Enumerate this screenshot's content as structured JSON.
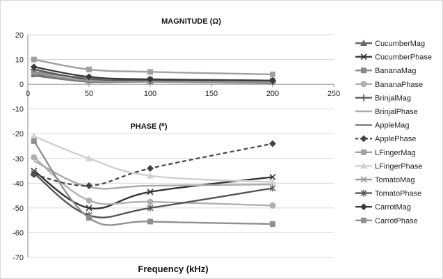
{
  "chart_data": {
    "type": "line",
    "title_top": "MAGNITUDE (Ω)",
    "title_bottom": "PHASE (⁰)",
    "xlabel": "Frequency (kHz)",
    "ylim": [
      -70,
      20
    ],
    "yticks": [
      20,
      10,
      0,
      -10,
      -20,
      -30,
      -40,
      -50,
      -60,
      -70
    ],
    "xlim": [
      0,
      250
    ],
    "xticks": [
      0,
      50,
      100,
      150,
      200,
      250
    ],
    "x": [
      5,
      50,
      100,
      200
    ],
    "grid": true,
    "legend_position": "right",
    "series": [
      {
        "name": "CucumberMag",
        "values": [
          4,
          1.5,
          1.2,
          1
        ],
        "color": "#666666",
        "marker": "triangle",
        "dash": "solid"
      },
      {
        "name": "CucumberPhase",
        "values": [
          -35,
          -50,
          -43.5,
          -37.5
        ],
        "color": "#333333",
        "marker": "x",
        "dash": "solid"
      },
      {
        "name": "BananaMag",
        "values": [
          5,
          2.5,
          2,
          1.5
        ],
        "color": "#888888",
        "marker": "square",
        "dash": "solid"
      },
      {
        "name": "BananaPhase",
        "values": [
          -29.5,
          -47,
          -47.5,
          -49
        ],
        "color": "#b0b0b0",
        "marker": "circle",
        "dash": "solid"
      },
      {
        "name": "BrinjalMag",
        "values": [
          6,
          2,
          1.5,
          1
        ],
        "color": "#555555",
        "marker": "plus",
        "dash": "solid"
      },
      {
        "name": "BrinjalPhase",
        "values": [
          -31,
          -41.5,
          -41,
          -40.5
        ],
        "color": "#aaaaaa",
        "marker": "none",
        "dash": "solid"
      },
      {
        "name": "AppleMag",
        "values": [
          3.5,
          1,
          1,
          0.5
        ],
        "color": "#777777",
        "marker": "none",
        "dash": "solid"
      },
      {
        "name": "ApplePhase",
        "values": [
          -36.5,
          -41,
          -34,
          -24
        ],
        "color": "#444444",
        "marker": "diamond",
        "dash": "dashed"
      },
      {
        "name": "LFingerMag",
        "values": [
          10,
          6,
          5,
          4
        ],
        "color": "#a0a0a0",
        "marker": "square",
        "dash": "solid"
      },
      {
        "name": "LFingerPhase",
        "values": [
          -21,
          -30,
          -37,
          -39.5
        ],
        "color": "#d0d0d0",
        "marker": "triangle",
        "dash": "solid"
      },
      {
        "name": "TomatoMag",
        "values": [
          4.5,
          1.5,
          1,
          1
        ],
        "color": "#999999",
        "marker": "x",
        "dash": "solid"
      },
      {
        "name": "TomatoPhase",
        "values": [
          -36,
          -53,
          -50,
          -42
        ],
        "color": "#555555",
        "marker": "star",
        "dash": "solid"
      },
      {
        "name": "CarrotMag",
        "values": [
          7,
          3,
          2,
          1.5
        ],
        "color": "#3a3a3a",
        "marker": "diamond",
        "dash": "solid"
      },
      {
        "name": "CarrotPhase",
        "values": [
          -23,
          -54,
          -55.5,
          -56.5
        ],
        "color": "#8f8f8f",
        "marker": "square",
        "dash": "solid"
      }
    ]
  }
}
